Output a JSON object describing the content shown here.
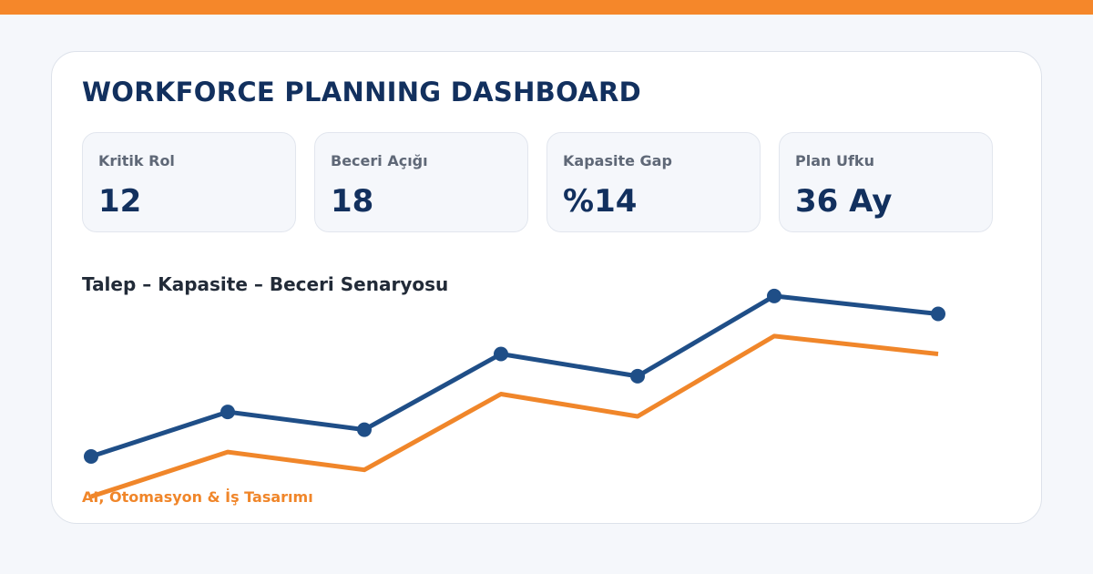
{
  "header": {
    "title": "WORKFORCE PLANNING DASHBOARD"
  },
  "kpis": [
    {
      "label": "Kritik Rol",
      "value": "12"
    },
    {
      "label": "Beceri Açığı",
      "value": "18"
    },
    {
      "label": "Kapasite Gap",
      "value": "%14"
    },
    {
      "label": "Plan Ufku",
      "value": "36 Ay"
    }
  ],
  "footer": {
    "note": "AI, Otomasyon & İş Tasarımı"
  },
  "colors": {
    "accent": "#f5872a",
    "series_blue": "#1f4e87",
    "series_orange": "#f0862a",
    "title_navy": "#12305e"
  },
  "chart_data": {
    "type": "line",
    "title": "Talep – Kapasite – Beceri Senaryosu",
    "xlabel": "",
    "ylabel": "",
    "grid": false,
    "legend": "none",
    "x": [
      0,
      1,
      2,
      3,
      4,
      5,
      6
    ],
    "ylim": [
      0,
      230
    ],
    "series": [
      {
        "values": [
          45,
          95,
          75,
          160,
          135,
          225,
          205
        ],
        "color": "#1f4e87",
        "markers": true
      },
      {
        "values": [
          0,
          50,
          30,
          115,
          90,
          180,
          160
        ],
        "color": "#f0862a",
        "markers": false
      }
    ]
  }
}
